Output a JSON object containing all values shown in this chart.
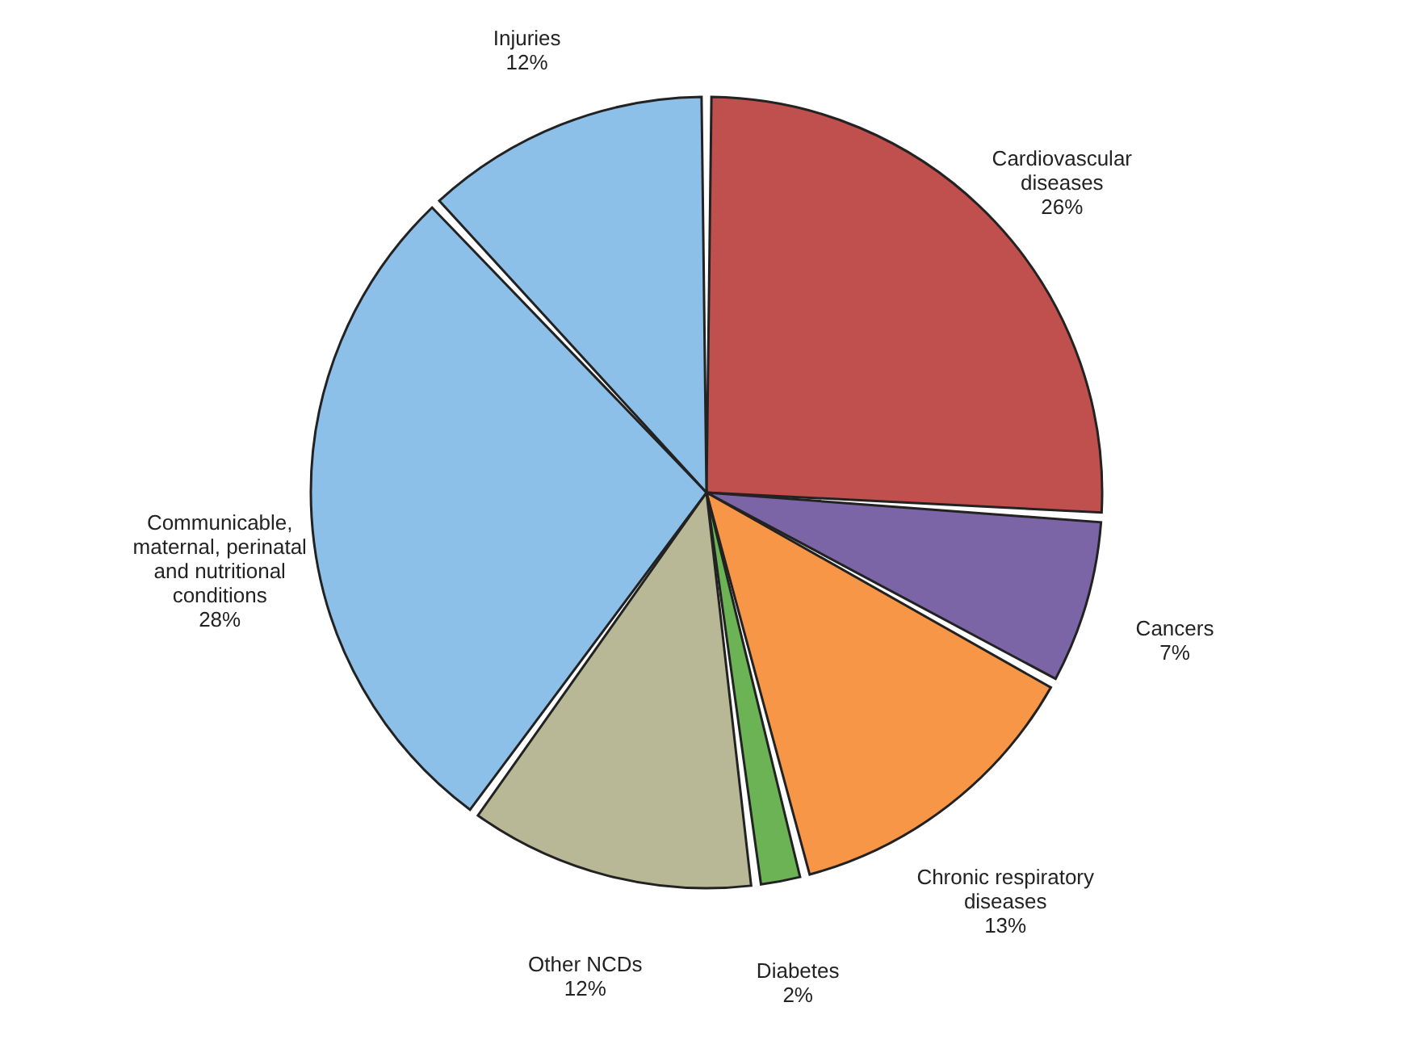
{
  "chart_data": {
    "type": "pie",
    "categories": [
      "Cardiovascular\ndiseases",
      "Cancers",
      "Chronic respiratory\ndiseases",
      "Diabetes",
      "Other NCDs",
      "Communicable,\nmaternal, perinatal\nand nutritional\nconditions",
      "Injuries"
    ],
    "values": [
      26,
      7,
      13,
      2,
      12,
      28,
      12
    ],
    "value_labels": [
      "26%",
      "7%",
      "13%",
      "2%",
      "12%",
      "28%",
      "12%"
    ],
    "colors": [
      "#c0504d",
      "#7b65a7",
      "#f79646",
      "#6cb356",
      "#b8b896",
      "#8dc0e8",
      "#8dc0e8"
    ]
  }
}
